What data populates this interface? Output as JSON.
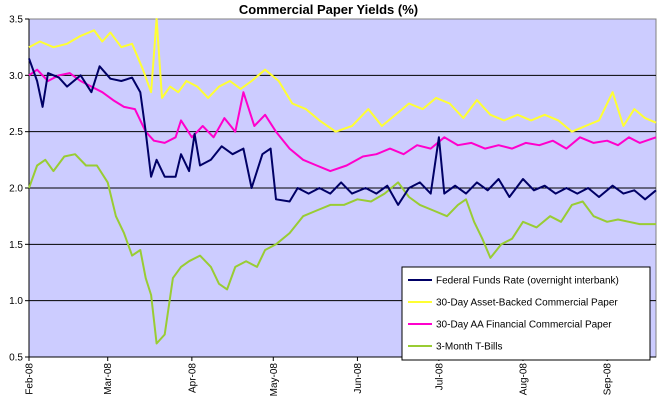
{
  "chart_data": {
    "type": "line",
    "title": "Commercial Paper Yields (%)",
    "xlabel": "",
    "ylabel": "",
    "ylim": [
      0.5,
      3.5
    ],
    "yticks": [
      "0.5",
      "1.0",
      "1.5",
      "2.0",
      "2.5",
      "3.0",
      "3.5"
    ],
    "xlim": [
      "2008-02-01",
      "2008-09-19"
    ],
    "xticks": [
      {
        "date": "2008-02-01",
        "label": "Feb-08"
      },
      {
        "date": "2008-03-01",
        "label": "Mar-08"
      },
      {
        "date": "2008-04-01",
        "label": "Apr-08"
      },
      {
        "date": "2008-05-01",
        "label": "May-08"
      },
      {
        "date": "2008-06-01",
        "label": "Jun-08"
      },
      {
        "date": "2008-07-01",
        "label": "Jul-08"
      },
      {
        "date": "2008-08-01",
        "label": "Aug-08"
      },
      {
        "date": "2008-09-01",
        "label": "Sep-08"
      }
    ],
    "grid": "horizontal",
    "legend_position": "bottom-right",
    "background_color": "#ccccff",
    "series": [
      {
        "name": "Federal Funds Rate (overnight interbank)",
        "color": "#000066",
        "points": [
          [
            "2008-02-01",
            3.15
          ],
          [
            "2008-02-04",
            2.95
          ],
          [
            "2008-02-06",
            2.72
          ],
          [
            "2008-02-08",
            3.02
          ],
          [
            "2008-02-12",
            2.98
          ],
          [
            "2008-02-15",
            2.9
          ],
          [
            "2008-02-20",
            3.0
          ],
          [
            "2008-02-24",
            2.85
          ],
          [
            "2008-02-27",
            3.08
          ],
          [
            "2008-03-02",
            2.97
          ],
          [
            "2008-03-06",
            2.95
          ],
          [
            "2008-03-10",
            2.98
          ],
          [
            "2008-03-13",
            2.85
          ],
          [
            "2008-03-15",
            2.5
          ],
          [
            "2008-03-17",
            2.1
          ],
          [
            "2008-03-19",
            2.25
          ],
          [
            "2008-03-22",
            2.1
          ],
          [
            "2008-03-26",
            2.1
          ],
          [
            "2008-03-28",
            2.3
          ],
          [
            "2008-03-31",
            2.15
          ],
          [
            "2008-04-02",
            2.48
          ],
          [
            "2008-04-04",
            2.2
          ],
          [
            "2008-04-08",
            2.25
          ],
          [
            "2008-04-12",
            2.37
          ],
          [
            "2008-04-16",
            2.3
          ],
          [
            "2008-04-20",
            2.35
          ],
          [
            "2008-04-23",
            2.0
          ],
          [
            "2008-04-27",
            2.3
          ],
          [
            "2008-04-30",
            2.35
          ],
          [
            "2008-05-02",
            1.9
          ],
          [
            "2008-05-07",
            1.88
          ],
          [
            "2008-05-10",
            2.0
          ],
          [
            "2008-05-14",
            1.95
          ],
          [
            "2008-05-18",
            2.0
          ],
          [
            "2008-05-22",
            1.95
          ],
          [
            "2008-05-26",
            2.05
          ],
          [
            "2008-05-30",
            1.95
          ],
          [
            "2008-06-04",
            2.0
          ],
          [
            "2008-06-08",
            1.95
          ],
          [
            "2008-06-12",
            2.02
          ],
          [
            "2008-06-16",
            1.85
          ],
          [
            "2008-06-20",
            2.0
          ],
          [
            "2008-06-24",
            2.05
          ],
          [
            "2008-06-28",
            1.95
          ],
          [
            "2008-07-01",
            2.45
          ],
          [
            "2008-07-03",
            1.95
          ],
          [
            "2008-07-07",
            2.02
          ],
          [
            "2008-07-11",
            1.95
          ],
          [
            "2008-07-15",
            2.05
          ],
          [
            "2008-07-19",
            1.98
          ],
          [
            "2008-07-23",
            2.08
          ],
          [
            "2008-07-27",
            1.92
          ],
          [
            "2008-08-01",
            2.08
          ],
          [
            "2008-08-05",
            1.98
          ],
          [
            "2008-08-09",
            2.02
          ],
          [
            "2008-08-13",
            1.95
          ],
          [
            "2008-08-17",
            2.0
          ],
          [
            "2008-08-21",
            1.95
          ],
          [
            "2008-08-25",
            2.0
          ],
          [
            "2008-08-29",
            1.92
          ],
          [
            "2008-09-03",
            2.02
          ],
          [
            "2008-09-07",
            1.95
          ],
          [
            "2008-09-11",
            1.98
          ],
          [
            "2008-09-15",
            1.9
          ],
          [
            "2008-09-19",
            1.98
          ]
        ]
      },
      {
        "name": "30-Day Asset-Backed Commercial Paper",
        "color": "#ffff33",
        "points": [
          [
            "2008-02-01",
            3.25
          ],
          [
            "2008-02-05",
            3.3
          ],
          [
            "2008-02-10",
            3.25
          ],
          [
            "2008-02-15",
            3.28
          ],
          [
            "2008-02-20",
            3.35
          ],
          [
            "2008-02-25",
            3.4
          ],
          [
            "2008-02-28",
            3.3
          ],
          [
            "2008-03-02",
            3.38
          ],
          [
            "2008-03-06",
            3.25
          ],
          [
            "2008-03-10",
            3.28
          ],
          [
            "2008-03-14",
            3.05
          ],
          [
            "2008-03-17",
            2.85
          ],
          [
            "2008-03-19",
            3.5
          ],
          [
            "2008-03-21",
            2.8
          ],
          [
            "2008-03-24",
            2.9
          ],
          [
            "2008-03-27",
            2.85
          ],
          [
            "2008-03-30",
            2.95
          ],
          [
            "2008-04-03",
            2.9
          ],
          [
            "2008-04-07",
            2.8
          ],
          [
            "2008-04-11",
            2.9
          ],
          [
            "2008-04-15",
            2.95
          ],
          [
            "2008-04-19",
            2.88
          ],
          [
            "2008-04-23",
            2.95
          ],
          [
            "2008-04-28",
            3.05
          ],
          [
            "2008-05-03",
            2.95
          ],
          [
            "2008-05-08",
            2.75
          ],
          [
            "2008-05-13",
            2.7
          ],
          [
            "2008-05-18",
            2.6
          ],
          [
            "2008-05-24",
            2.5
          ],
          [
            "2008-05-30",
            2.55
          ],
          [
            "2008-06-05",
            2.7
          ],
          [
            "2008-06-10",
            2.55
          ],
          [
            "2008-06-15",
            2.65
          ],
          [
            "2008-06-20",
            2.75
          ],
          [
            "2008-06-25",
            2.7
          ],
          [
            "2008-06-30",
            2.8
          ],
          [
            "2008-07-05",
            2.75
          ],
          [
            "2008-07-10",
            2.62
          ],
          [
            "2008-07-15",
            2.78
          ],
          [
            "2008-07-20",
            2.65
          ],
          [
            "2008-07-25",
            2.6
          ],
          [
            "2008-07-30",
            2.65
          ],
          [
            "2008-08-04",
            2.6
          ],
          [
            "2008-08-09",
            2.65
          ],
          [
            "2008-08-14",
            2.6
          ],
          [
            "2008-08-19",
            2.5
          ],
          [
            "2008-08-24",
            2.55
          ],
          [
            "2008-08-29",
            2.6
          ],
          [
            "2008-09-03",
            2.85
          ],
          [
            "2008-09-07",
            2.55
          ],
          [
            "2008-09-11",
            2.7
          ],
          [
            "2008-09-15",
            2.62
          ],
          [
            "2008-09-19",
            2.58
          ]
        ]
      },
      {
        "name": "30-Day AA Financial Commercial Paper",
        "color": "#ff00cc",
        "points": [
          [
            "2008-02-01",
            3.0
          ],
          [
            "2008-02-04",
            3.05
          ],
          [
            "2008-02-08",
            2.95
          ],
          [
            "2008-02-12",
            3.0
          ],
          [
            "2008-02-16",
            3.02
          ],
          [
            "2008-02-20",
            2.95
          ],
          [
            "2008-02-24",
            2.9
          ],
          [
            "2008-02-28",
            2.85
          ],
          [
            "2008-03-03",
            2.78
          ],
          [
            "2008-03-07",
            2.72
          ],
          [
            "2008-03-11",
            2.7
          ],
          [
            "2008-03-15",
            2.5
          ],
          [
            "2008-03-18",
            2.42
          ],
          [
            "2008-03-22",
            2.4
          ],
          [
            "2008-03-26",
            2.45
          ],
          [
            "2008-03-28",
            2.6
          ],
          [
            "2008-04-01",
            2.45
          ],
          [
            "2008-04-05",
            2.55
          ],
          [
            "2008-04-09",
            2.45
          ],
          [
            "2008-04-13",
            2.62
          ],
          [
            "2008-04-17",
            2.5
          ],
          [
            "2008-04-20",
            2.85
          ],
          [
            "2008-04-24",
            2.55
          ],
          [
            "2008-04-28",
            2.65
          ],
          [
            "2008-05-02",
            2.5
          ],
          [
            "2008-05-07",
            2.35
          ],
          [
            "2008-05-12",
            2.25
          ],
          [
            "2008-05-17",
            2.2
          ],
          [
            "2008-05-22",
            2.15
          ],
          [
            "2008-05-28",
            2.2
          ],
          [
            "2008-06-03",
            2.28
          ],
          [
            "2008-06-08",
            2.3
          ],
          [
            "2008-06-13",
            2.35
          ],
          [
            "2008-06-18",
            2.3
          ],
          [
            "2008-06-23",
            2.38
          ],
          [
            "2008-06-28",
            2.35
          ],
          [
            "2008-07-03",
            2.45
          ],
          [
            "2008-07-08",
            2.38
          ],
          [
            "2008-07-13",
            2.4
          ],
          [
            "2008-07-18",
            2.35
          ],
          [
            "2008-07-23",
            2.38
          ],
          [
            "2008-07-28",
            2.35
          ],
          [
            "2008-08-02",
            2.4
          ],
          [
            "2008-08-07",
            2.38
          ],
          [
            "2008-08-12",
            2.42
          ],
          [
            "2008-08-17",
            2.35
          ],
          [
            "2008-08-22",
            2.45
          ],
          [
            "2008-08-27",
            2.4
          ],
          [
            "2008-09-01",
            2.42
          ],
          [
            "2008-09-05",
            2.38
          ],
          [
            "2008-09-09",
            2.45
          ],
          [
            "2008-09-13",
            2.4
          ],
          [
            "2008-09-19",
            2.45
          ]
        ]
      },
      {
        "name": "3-Month T-Bills",
        "color": "#99cc33",
        "points": [
          [
            "2008-02-01",
            2.0
          ],
          [
            "2008-02-04",
            2.2
          ],
          [
            "2008-02-07",
            2.25
          ],
          [
            "2008-02-10",
            2.15
          ],
          [
            "2008-02-14",
            2.28
          ],
          [
            "2008-02-18",
            2.3
          ],
          [
            "2008-02-22",
            2.2
          ],
          [
            "2008-02-26",
            2.2
          ],
          [
            "2008-03-01",
            2.05
          ],
          [
            "2008-03-04",
            1.75
          ],
          [
            "2008-03-07",
            1.6
          ],
          [
            "2008-03-10",
            1.4
          ],
          [
            "2008-03-13",
            1.45
          ],
          [
            "2008-03-15",
            1.2
          ],
          [
            "2008-03-17",
            1.05
          ],
          [
            "2008-03-19",
            0.62
          ],
          [
            "2008-03-22",
            0.7
          ],
          [
            "2008-03-25",
            1.2
          ],
          [
            "2008-03-28",
            1.3
          ],
          [
            "2008-03-31",
            1.35
          ],
          [
            "2008-04-04",
            1.4
          ],
          [
            "2008-04-08",
            1.3
          ],
          [
            "2008-04-11",
            1.15
          ],
          [
            "2008-04-14",
            1.1
          ],
          [
            "2008-04-17",
            1.3
          ],
          [
            "2008-04-21",
            1.35
          ],
          [
            "2008-04-25",
            1.3
          ],
          [
            "2008-04-28",
            1.45
          ],
          [
            "2008-05-02",
            1.5
          ],
          [
            "2008-05-07",
            1.6
          ],
          [
            "2008-05-12",
            1.75
          ],
          [
            "2008-05-17",
            1.8
          ],
          [
            "2008-05-22",
            1.85
          ],
          [
            "2008-05-27",
            1.85
          ],
          [
            "2008-06-01",
            1.9
          ],
          [
            "2008-06-06",
            1.88
          ],
          [
            "2008-06-11",
            1.95
          ],
          [
            "2008-06-16",
            2.05
          ],
          [
            "2008-06-20",
            1.92
          ],
          [
            "2008-06-24",
            1.85
          ],
          [
            "2008-06-29",
            1.8
          ],
          [
            "2008-07-04",
            1.75
          ],
          [
            "2008-07-08",
            1.85
          ],
          [
            "2008-07-11",
            1.9
          ],
          [
            "2008-07-14",
            1.7
          ],
          [
            "2008-07-17",
            1.55
          ],
          [
            "2008-07-20",
            1.38
          ],
          [
            "2008-07-24",
            1.5
          ],
          [
            "2008-07-28",
            1.55
          ],
          [
            "2008-08-01",
            1.7
          ],
          [
            "2008-08-06",
            1.65
          ],
          [
            "2008-08-11",
            1.75
          ],
          [
            "2008-08-15",
            1.7
          ],
          [
            "2008-08-19",
            1.85
          ],
          [
            "2008-08-23",
            1.88
          ],
          [
            "2008-08-27",
            1.75
          ],
          [
            "2008-09-01",
            1.7
          ],
          [
            "2008-09-05",
            1.72
          ],
          [
            "2008-09-09",
            1.7
          ],
          [
            "2008-09-13",
            1.68
          ],
          [
            "2008-09-19",
            1.68
          ]
        ]
      }
    ]
  }
}
